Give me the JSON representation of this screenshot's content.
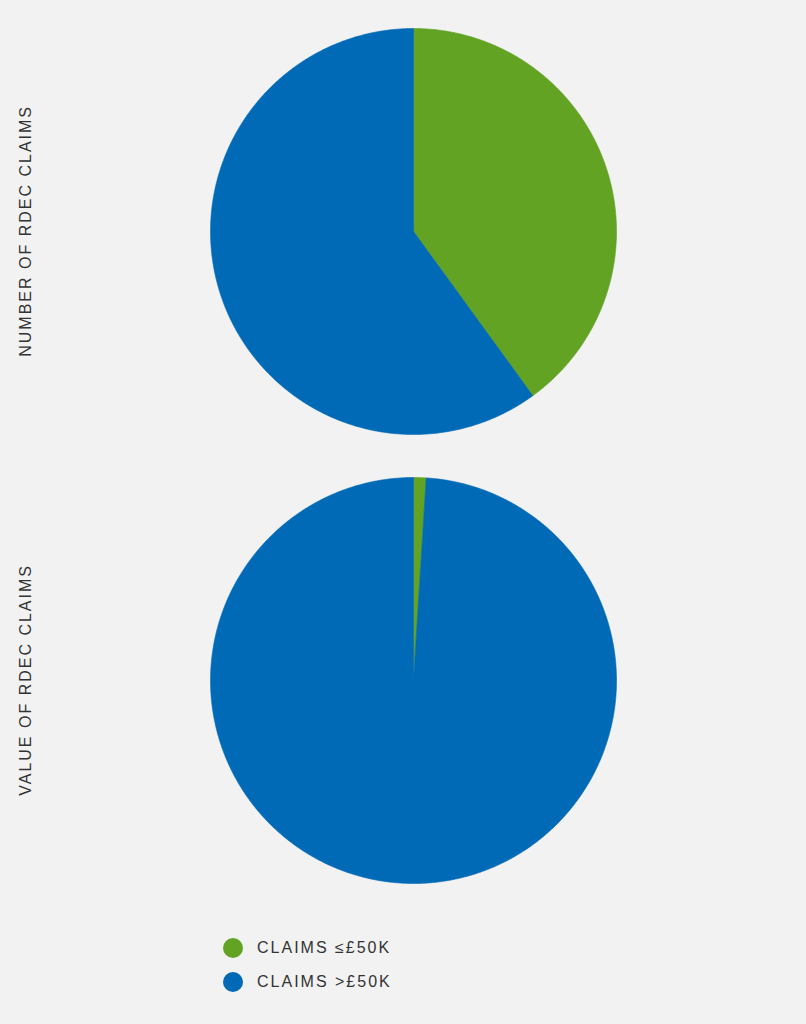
{
  "chart_data": [
    {
      "type": "pie",
      "title": "NUMBER OF RDEC CLAIMS",
      "categories": [
        "CLAIMS ≤£50K",
        "CLAIMS >£50K"
      ],
      "values": [
        40,
        60
      ],
      "colors": [
        "#62a323",
        "#006ab7"
      ]
    },
    {
      "type": "pie",
      "title": "VALUE OF RDEC CLAIMS",
      "categories": [
        "CLAIMS ≤£50K",
        "CLAIMS >£50K"
      ],
      "values": [
        1,
        99
      ],
      "colors": [
        "#62a323",
        "#006ab7"
      ],
      "legend": "bottom"
    }
  ]
}
